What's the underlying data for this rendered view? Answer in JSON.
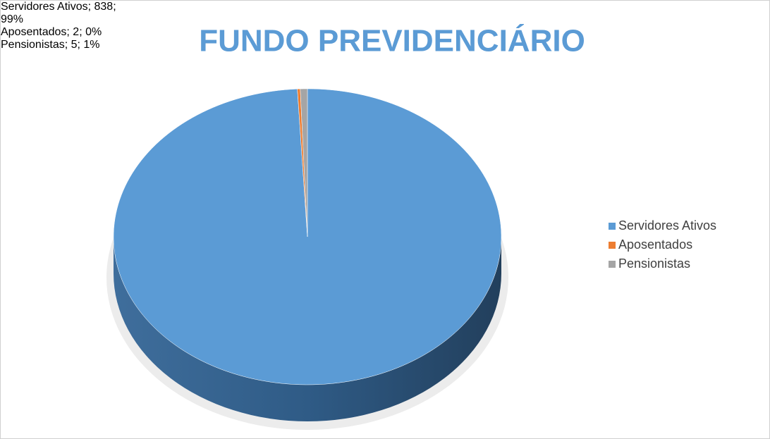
{
  "chart_data": {
    "type": "pie",
    "title": "FUNDO PREVIDENCIÁRIO",
    "categories": [
      "Servidores Ativos",
      "Aposentados",
      "Pensionistas"
    ],
    "values": [
      838,
      2,
      5
    ],
    "value_labels": [
      "Servidores Ativos; 838; 99%",
      "Aposentados; 2; 0%",
      "Pensionistas; 5; 1%"
    ],
    "colors": [
      "#5b9bd5",
      "#ed7d31",
      "#a5a5a5"
    ],
    "legend": "right"
  }
}
